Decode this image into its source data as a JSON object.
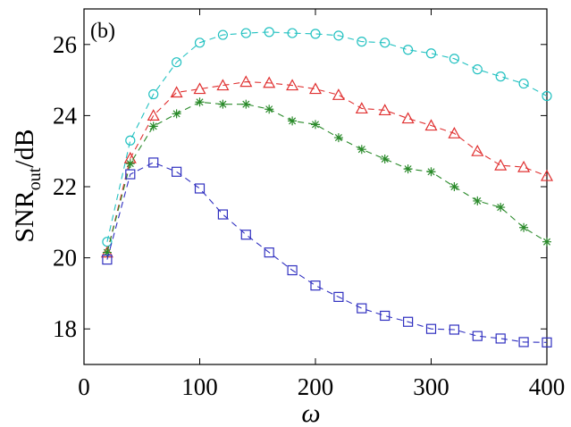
{
  "chart_data": {
    "type": "line",
    "panel_label": "(b)",
    "xlabel": "ω",
    "ylabel": {
      "main": "SNR",
      "subscript": "out",
      "suffix": "/dB"
    },
    "xlim": [
      0,
      400
    ],
    "ylim": [
      17,
      27
    ],
    "xticks": [
      0,
      100,
      200,
      300,
      400
    ],
    "yticks": [
      18,
      20,
      22,
      24,
      26
    ],
    "grid": false,
    "x": [
      20,
      40,
      60,
      80,
      100,
      120,
      140,
      160,
      180,
      200,
      220,
      240,
      260,
      280,
      300,
      320,
      340,
      360,
      380,
      400
    ],
    "series": [
      {
        "name": "circle",
        "color": "#22c1c1",
        "marker": "circle",
        "values": [
          20.45,
          23.3,
          24.6,
          25.5,
          26.05,
          26.27,
          26.32,
          26.35,
          26.32,
          26.3,
          26.25,
          26.08,
          26.05,
          25.85,
          25.75,
          25.6,
          25.3,
          25.1,
          24.9,
          24.55
        ]
      },
      {
        "name": "triangle",
        "color": "#e03030",
        "marker": "triangle",
        "values": [
          20.15,
          22.8,
          24.0,
          24.65,
          24.75,
          24.85,
          24.95,
          24.92,
          24.85,
          24.75,
          24.58,
          24.2,
          24.15,
          23.92,
          23.72,
          23.5,
          23.0,
          22.6,
          22.55,
          22.3
        ]
      },
      {
        "name": "star",
        "color": "#2a8a2a",
        "marker": "star",
        "values": [
          20.15,
          22.65,
          23.7,
          24.05,
          24.38,
          24.32,
          24.32,
          24.18,
          23.85,
          23.75,
          23.38,
          23.05,
          22.78,
          22.5,
          22.42,
          22.0,
          21.6,
          21.42,
          20.85,
          20.45
        ]
      },
      {
        "name": "square",
        "color": "#3030c0",
        "marker": "square",
        "values": [
          19.95,
          22.35,
          22.68,
          22.42,
          21.95,
          21.22,
          20.65,
          20.15,
          19.65,
          19.22,
          18.9,
          18.58,
          18.37,
          18.2,
          18.0,
          17.98,
          17.8,
          17.73,
          17.63,
          17.62
        ]
      }
    ]
  }
}
